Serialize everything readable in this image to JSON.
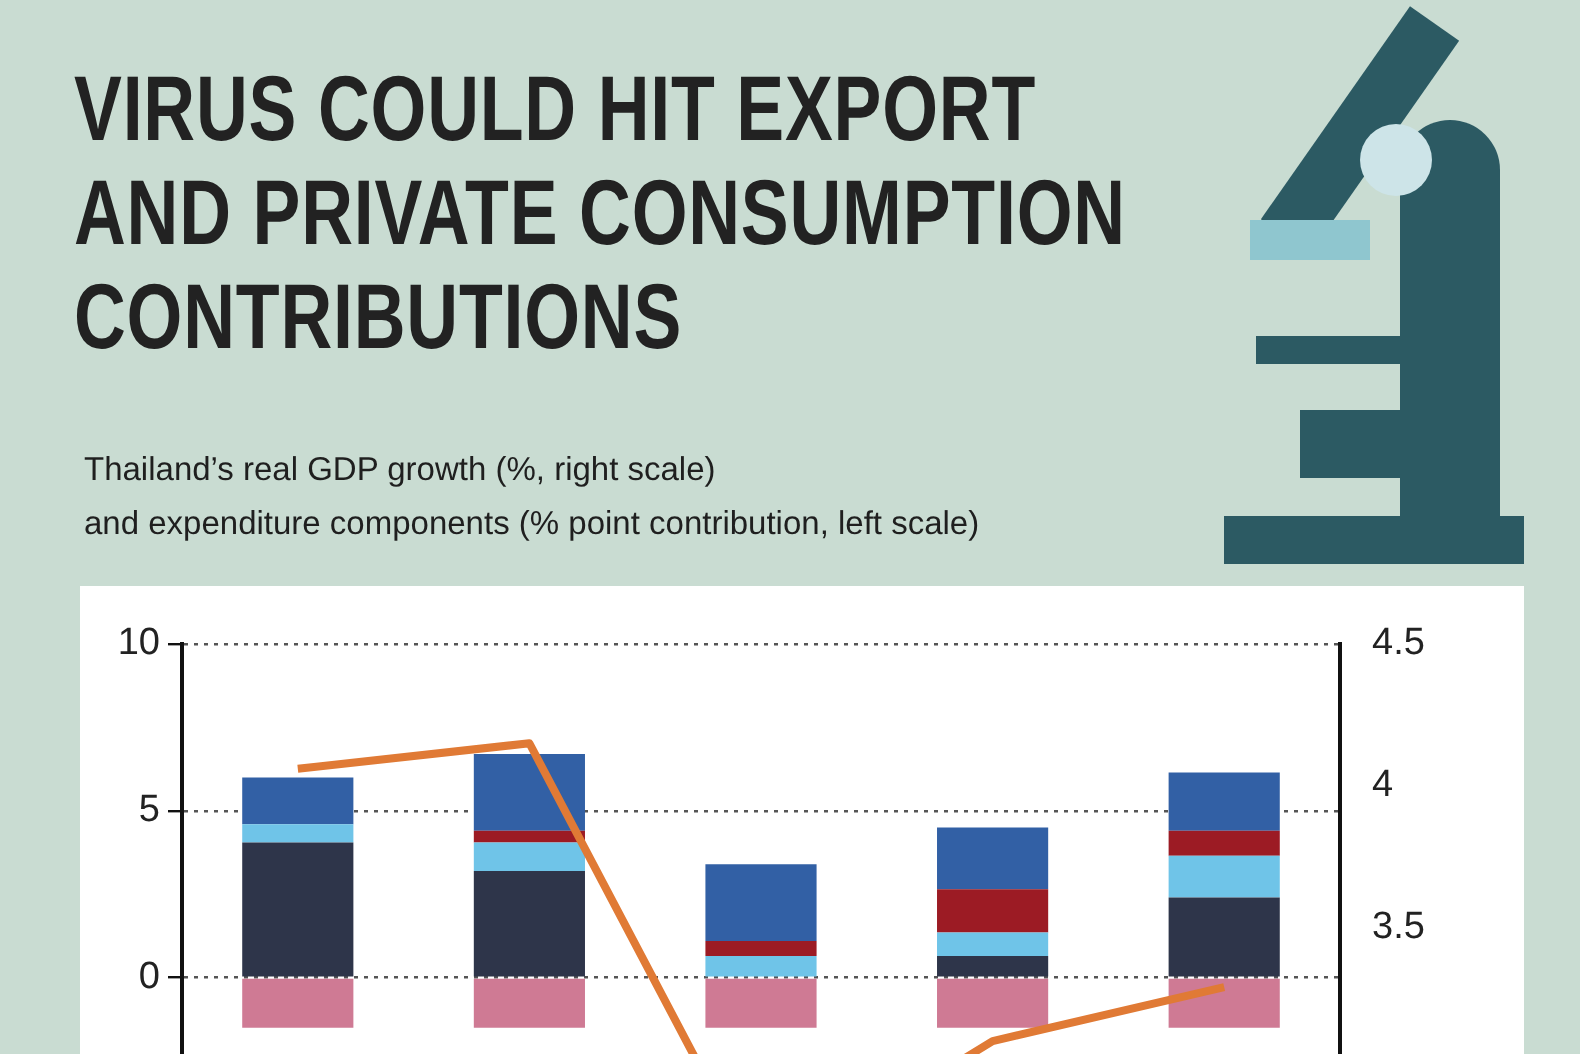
{
  "chart_data": {
    "type": "bar",
    "title": "VIRUS COULD HIT EXPORT AND PRIVATE CONSUMPTION CONTRIBUTIONS",
    "subtitle": "Thailand’s real GDP growth (%, right scale)\nand expenditure components (% point contribution, left scale)",
    "categories": [
      null,
      null,
      null,
      null,
      null
    ],
    "stacked": true,
    "series": [
      {
        "color": "#cf7a94",
        "values": [
          -1.5,
          -1.5,
          -1.5,
          -1.5,
          -1.5
        ]
      },
      {
        "color": "#2e354a",
        "values": [
          4.05,
          3.2,
          0,
          0.65,
          2.4
        ]
      },
      {
        "color": "#6fc4e8",
        "values": [
          0.55,
          0.85,
          0.65,
          0.7,
          1.25
        ]
      },
      {
        "color": "#9c1b24",
        "values": [
          0,
          0.35,
          0.45,
          1.3,
          0.75
        ]
      },
      {
        "color": "#3260a5",
        "values": [
          1.4,
          2.3,
          2.3,
          1.85,
          1.75
        ]
      },
      {
        "type": "line",
        "axis": "y2",
        "color": "#e07a35",
        "values": [
          4.06,
          4.15,
          2.6,
          3.1,
          3.29
        ]
      }
    ],
    "ylim": [
      -7,
      10
    ],
    "yticks": [
      0,
      5,
      10
    ],
    "y2lim": [
      2.5,
      4.5
    ],
    "y2ticks": [
      3.5,
      4,
      4.5
    ],
    "grid": "y",
    "tick_labels": "y",
    "marker": "none"
  }
}
